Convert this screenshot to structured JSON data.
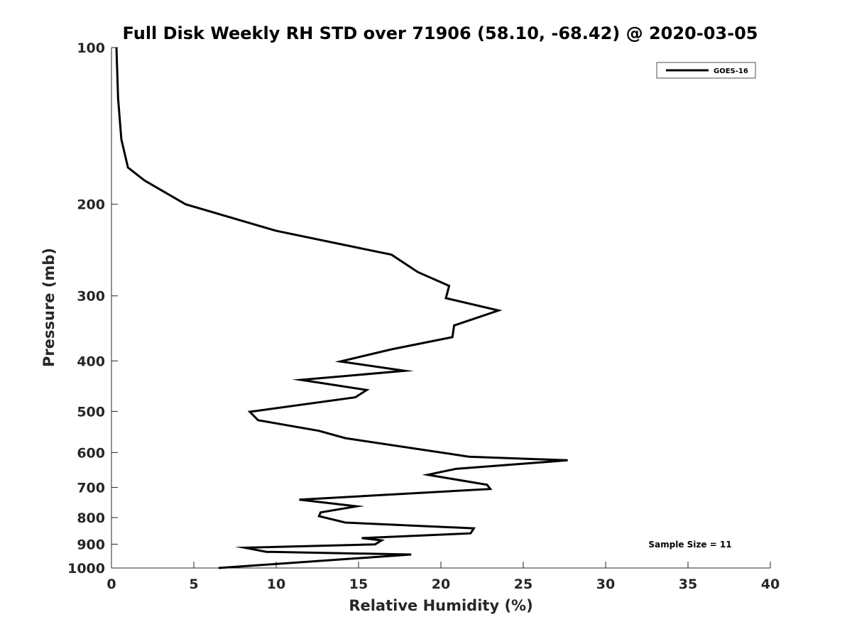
{
  "chart_data": {
    "type": "line",
    "title": "Full Disk Weekly RH STD over 71906 (58.10, -68.42) @ 2020-03-05",
    "xlabel": "Relative Humidity (%)",
    "ylabel": "Pressure (mb)",
    "xlim": [
      0,
      40
    ],
    "ylim": [
      100,
      1000
    ],
    "yscale": "log",
    "y_reversed": true,
    "xticks": [
      0,
      5,
      10,
      15,
      20,
      25,
      30,
      35,
      40
    ],
    "yticks": [
      100,
      200,
      300,
      400,
      500,
      600,
      700,
      800,
      900,
      1000
    ],
    "grid": false,
    "legend_position": "top-right",
    "series": [
      {
        "name": "GOES-16",
        "color": "#000000",
        "points": [
          [
            0.3,
            100
          ],
          [
            0.4,
            125
          ],
          [
            0.6,
            150
          ],
          [
            1.0,
            170
          ],
          [
            2.0,
            180
          ],
          [
            4.5,
            200
          ],
          [
            10.0,
            225
          ],
          [
            17.0,
            250
          ],
          [
            18.6,
            270
          ],
          [
            20.5,
            287
          ],
          [
            20.3,
            303
          ],
          [
            23.5,
            320
          ],
          [
            20.8,
            342
          ],
          [
            20.7,
            360
          ],
          [
            17.0,
            380
          ],
          [
            13.9,
            401
          ],
          [
            17.8,
            418
          ],
          [
            11.5,
            435
          ],
          [
            15.5,
            455
          ],
          [
            14.8,
            470
          ],
          [
            8.4,
            501
          ],
          [
            8.9,
            520
          ],
          [
            12.6,
            545
          ],
          [
            14.2,
            563
          ],
          [
            21.7,
            611
          ],
          [
            27.7,
            621
          ],
          [
            20.9,
            645
          ],
          [
            19.2,
            662
          ],
          [
            22.8,
            692
          ],
          [
            23.0,
            705
          ],
          [
            11.4,
            739
          ],
          [
            14.9,
            761
          ],
          [
            12.7,
            782
          ],
          [
            12.6,
            795
          ],
          [
            14.2,
            818
          ],
          [
            22.0,
            839
          ],
          [
            21.8,
            858
          ],
          [
            15.2,
            876
          ],
          [
            16.4,
            885
          ],
          [
            16.0,
            901
          ],
          [
            8.1,
            914
          ],
          [
            9.4,
            931
          ],
          [
            18.2,
            942
          ],
          [
            6.5,
            1000
          ]
        ]
      }
    ],
    "annotations": [
      "Sample Size = 11"
    ]
  }
}
